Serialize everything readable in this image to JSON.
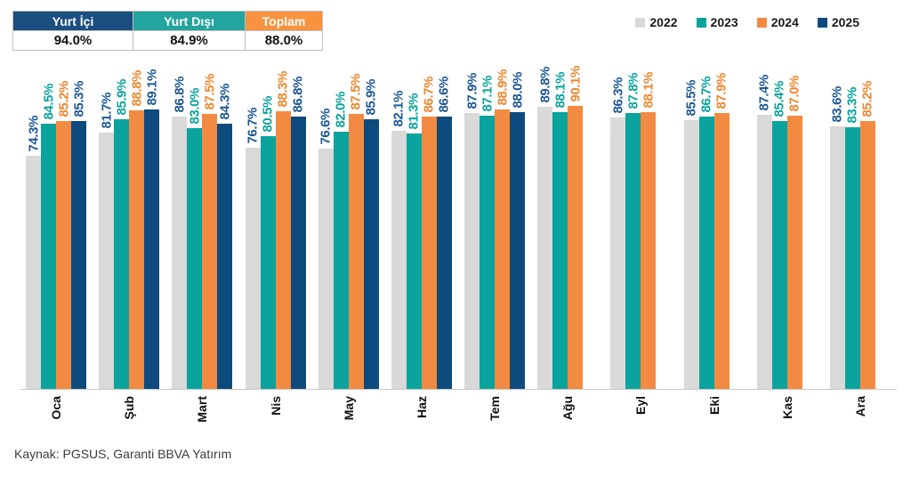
{
  "summary_table": {
    "columns": [
      {
        "label": "Yurt İçi",
        "value": "94.0%",
        "color": "#1b4f80"
      },
      {
        "label": "Yurt Dışı",
        "value": "84.9%",
        "color": "#22a59e"
      },
      {
        "label": "Toplam",
        "value": "88.0%",
        "color": "#f7923f"
      }
    ]
  },
  "legend": [
    {
      "label": "2022",
      "color": "#d9d9d9"
    },
    {
      "label": "2023",
      "color": "#0aa39d"
    },
    {
      "label": "2024",
      "color": "#f28b41"
    },
    {
      "label": "2025",
      "color": "#0d4a7d"
    }
  ],
  "chart_data": {
    "type": "bar",
    "title": "",
    "xlabel": "",
    "ylabel": "",
    "value_suffix": "%",
    "ylim": [
      0,
      90.1
    ],
    "grid": false,
    "legend_position": "top-right",
    "categories": [
      "Oca",
      "Şub",
      "Mart",
      "Nis",
      "May",
      "Haz",
      "Tem",
      "Ağu",
      "Eyl",
      "Eki",
      "Kas",
      "Ara"
    ],
    "series": [
      {
        "name": "2022",
        "color": "#d9d9d9",
        "label_color": "#1d5795",
        "values": [
          74.3,
          81.7,
          86.8,
          76.7,
          76.6,
          82.1,
          87.9,
          89.8,
          86.3,
          85.5,
          87.4,
          83.6
        ]
      },
      {
        "name": "2023",
        "color": "#0aa39d",
        "label_color": "#0aa39d",
        "values": [
          84.5,
          85.9,
          83.0,
          80.5,
          82.0,
          81.3,
          87.1,
          88.1,
          87.8,
          86.7,
          85.4,
          83.3
        ]
      },
      {
        "name": "2024",
        "color": "#f28b41",
        "label_color": "#f0862e",
        "values": [
          85.2,
          88.8,
          87.5,
          88.3,
          87.5,
          86.7,
          88.9,
          90.1,
          88.1,
          87.9,
          87.0,
          85.2
        ]
      },
      {
        "name": "2025",
        "color": "#0d4a7d",
        "label_color": "#1d5795",
        "values": [
          85.3,
          89.1,
          84.3,
          86.8,
          85.9,
          86.6,
          88.0,
          null,
          null,
          null,
          null,
          null
        ]
      }
    ]
  },
  "source": "Kaynak: PGSUS, Garanti BBVA Yatırım"
}
